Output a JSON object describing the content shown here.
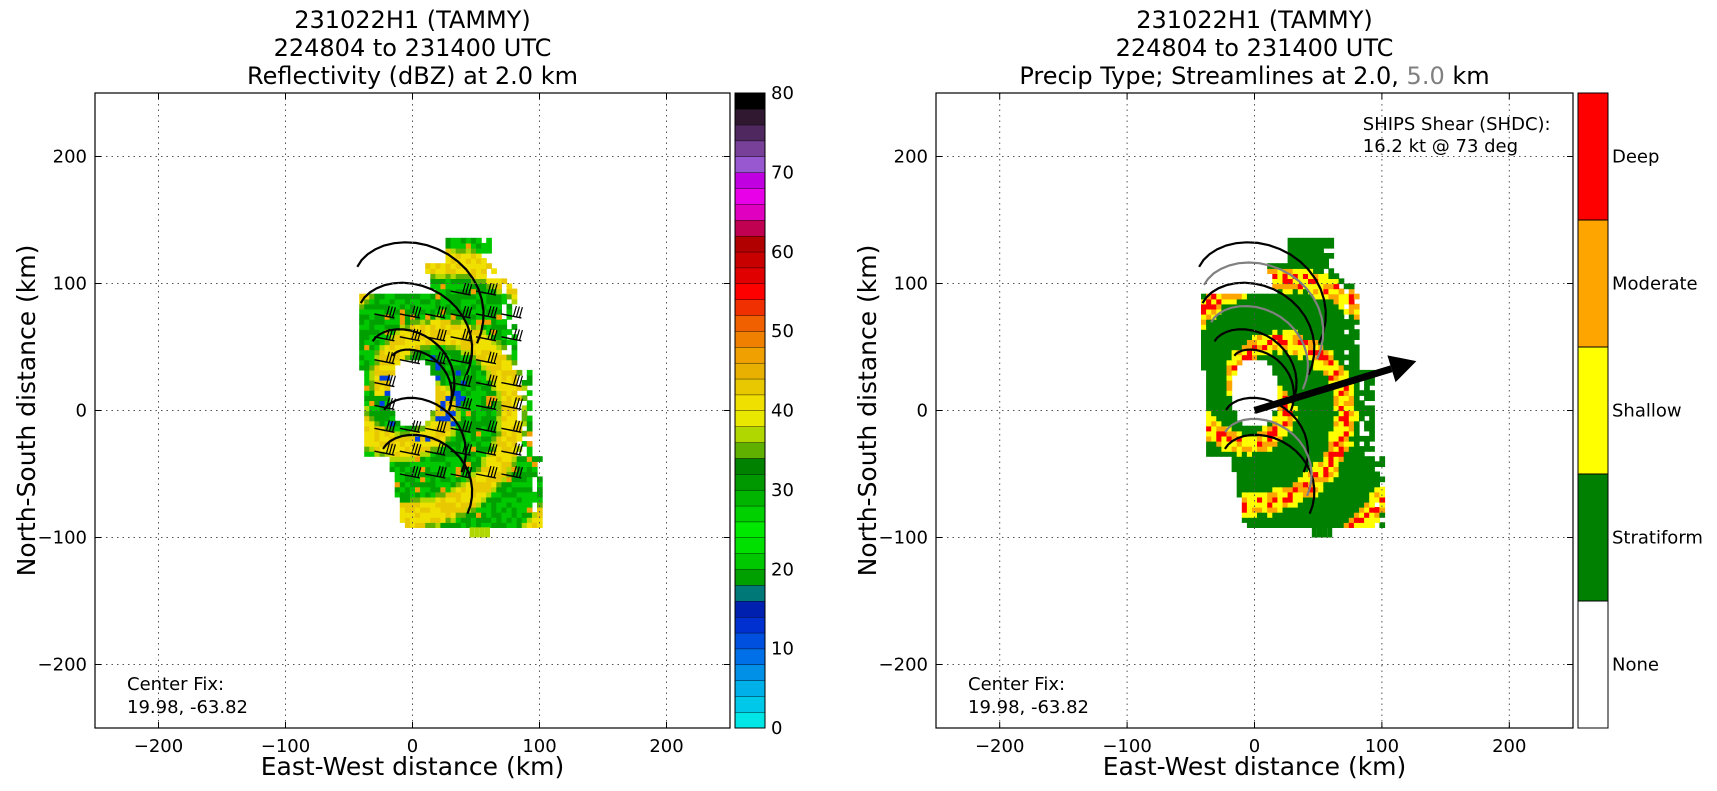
{
  "chart_data": [
    {
      "type": "heatmap",
      "title_lines": [
        "231022H1 (TAMMY)",
        "224804 to 231400 UTC",
        "Reflectivity (dBZ) at 2.0 km"
      ],
      "xlabel": "East-West distance (km)",
      "ylabel": "North-South distance (km)",
      "xlim": [
        -250,
        250
      ],
      "ylim": [
        -250,
        250
      ],
      "xticks": [
        -200,
        -100,
        0,
        100,
        200
      ],
      "yticks": [
        -200,
        -100,
        0,
        100,
        200
      ],
      "grid": true,
      "annotation_lines": [
        "Center Fix:",
        "19.98, -63.82"
      ],
      "colorbar": {
        "range": [
          0,
          80
        ],
        "ticks": [
          0,
          10,
          20,
          30,
          40,
          50,
          60,
          70,
          80
        ],
        "colors": [
          "#00e5e5",
          "#00c8e8",
          "#00b0e8",
          "#0090e8",
          "#0070e8",
          "#0050e0",
          "#0030d0",
          "#0020b0",
          "#007878",
          "#00a000",
          "#00c800",
          "#00e000",
          "#00e800",
          "#00d000",
          "#00b400",
          "#009800",
          "#008200",
          "#60b000",
          "#b0d800",
          "#e8e800",
          "#f0e000",
          "#e8c800",
          "#e8b000",
          "#f0a000",
          "#f08000",
          "#f06000",
          "#f03000",
          "#ff0000",
          "#e00000",
          "#c80000",
          "#b00000",
          "#c00050",
          "#e000c0",
          "#e800e8",
          "#c000e0",
          "#9858d0",
          "#784098",
          "#502860",
          "#301830",
          "#000000"
        ]
      },
      "field_style": "reflectivity",
      "streamline_colors": [
        "#000000"
      ],
      "wind_barbs": true
    },
    {
      "type": "heatmap",
      "title_lines": [
        "231022H1 (TAMMY)",
        "224804 to 231400 UTC"
      ],
      "title_line3_parts": [
        {
          "text": "Precip Type; Streamlines at 2.0, ",
          "color": "#000000"
        },
        {
          "text": "5.0",
          "color": "#808080"
        },
        {
          "text": " km",
          "color": "#000000"
        }
      ],
      "xlabel": "East-West distance (km)",
      "ylabel": "North-South distance (km)",
      "xlim": [
        -250,
        250
      ],
      "ylim": [
        -250,
        250
      ],
      "xticks": [
        -200,
        -100,
        0,
        100,
        200
      ],
      "yticks": [
        -200,
        -100,
        0,
        100,
        200
      ],
      "grid": true,
      "annotation_lines": [
        "Center Fix:",
        "19.98, -63.82"
      ],
      "shear_lines": [
        "SHIPS Shear (SHDC):",
        "16.2 kt @ 73 deg"
      ],
      "shear_vector": {
        "speed_kt": 16.2,
        "direction_deg": 73
      },
      "colorbar": {
        "categories": [
          "None",
          "Stratiform",
          "Shallow",
          "Moderate",
          "Deep"
        ],
        "colors": [
          "#ffffff",
          "#008000",
          "#ffff00",
          "#ffa500",
          "#ff0000"
        ]
      },
      "field_style": "precip_type",
      "streamline_colors": [
        "#000000",
        "#808080"
      ],
      "wind_barbs": false
    }
  ]
}
